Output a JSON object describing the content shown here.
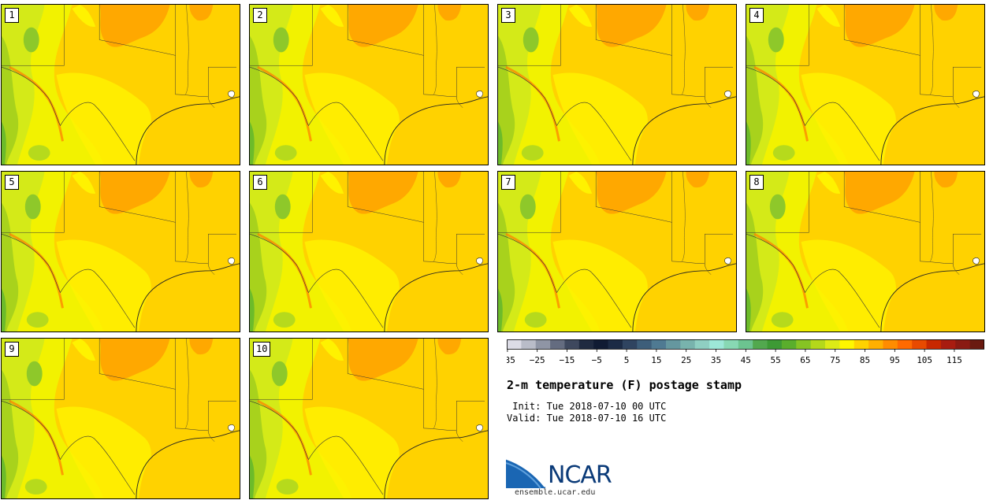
{
  "panels": [
    "1",
    "2",
    "3",
    "4",
    "5",
    "6",
    "7",
    "8",
    "9",
    "10"
  ],
  "colorbar": {
    "colors": [
      "#dcdce6",
      "#b9bcc8",
      "#8f95a5",
      "#646c80",
      "#3e485e",
      "#1f2a40",
      "#101b33",
      "#1c2b45",
      "#2f4460",
      "#3d5e7a",
      "#4f7a92",
      "#65979f",
      "#78b3ad",
      "#8fcfc2",
      "#9de8d8",
      "#88d8b4",
      "#6cc490",
      "#52a84e",
      "#3d9a35",
      "#5aae2c",
      "#86c423",
      "#b4d81a",
      "#dcea16",
      "#fff700",
      "#ffd200",
      "#ffb000",
      "#ff8c00",
      "#ff6a00",
      "#e84a00",
      "#c82800",
      "#a81c10",
      "#8a1a12",
      "#6a1a10"
    ],
    "ticks": [
      "−35",
      "−25",
      "−15",
      "−5",
      "5",
      "15",
      "25",
      "35",
      "45",
      "55",
      "65",
      "75",
      "85",
      "95",
      "105",
      "115"
    ]
  },
  "title": "2-m temperature (F) postage stamp",
  "init_line": " Init: Tue 2018-07-10 00 UTC",
  "valid_line": "Valid: Tue 2018-07-10 16 UTC",
  "logo": {
    "text": "NCAR",
    "url": "ensemble.ucar.edu"
  }
}
